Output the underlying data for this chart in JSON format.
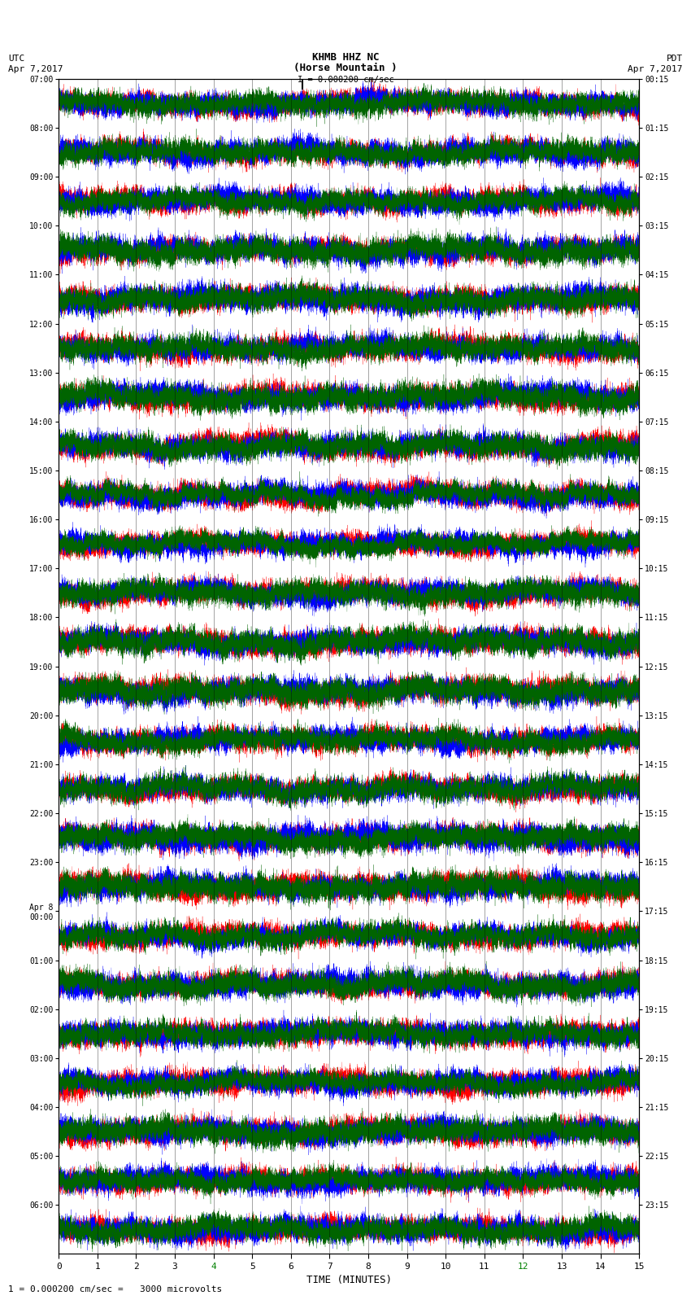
{
  "title_line1": "KHMB HHZ NC",
  "title_line2": "(Horse Mountain )",
  "title_line3": "I = 0.000200 cm/sec",
  "label_left_top1": "UTC",
  "label_left_top2": "Apr 7,2017",
  "label_right_top1": "PDT",
  "label_right_top2": "Apr 7,2017",
  "footer": "1 = 0.000200 cm/sec =   3000 microvolts",
  "xlabel": "TIME (MINUTES)",
  "utc_times": [
    "07:00",
    "08:00",
    "09:00",
    "10:00",
    "11:00",
    "12:00",
    "13:00",
    "14:00",
    "15:00",
    "16:00",
    "17:00",
    "18:00",
    "19:00",
    "20:00",
    "21:00",
    "22:00",
    "23:00",
    "Apr 8\n00:00",
    "01:00",
    "02:00",
    "03:00",
    "04:00",
    "05:00",
    "06:00"
  ],
  "pdt_times": [
    "00:15",
    "01:15",
    "02:15",
    "03:15",
    "04:15",
    "05:15",
    "06:15",
    "07:15",
    "08:15",
    "09:15",
    "10:15",
    "11:15",
    "12:15",
    "13:15",
    "14:15",
    "15:15",
    "16:15",
    "17:15",
    "18:15",
    "19:15",
    "20:15",
    "21:15",
    "22:15",
    "23:15"
  ],
  "n_traces": 24,
  "n_minutes": 15,
  "bg_color": "#ffffff",
  "trace_colors": [
    "red",
    "blue",
    "#006400"
  ],
  "font_family": "monospace",
  "samples_per_minute": 1500,
  "amplitude": 0.48,
  "linewidth": 0.18
}
